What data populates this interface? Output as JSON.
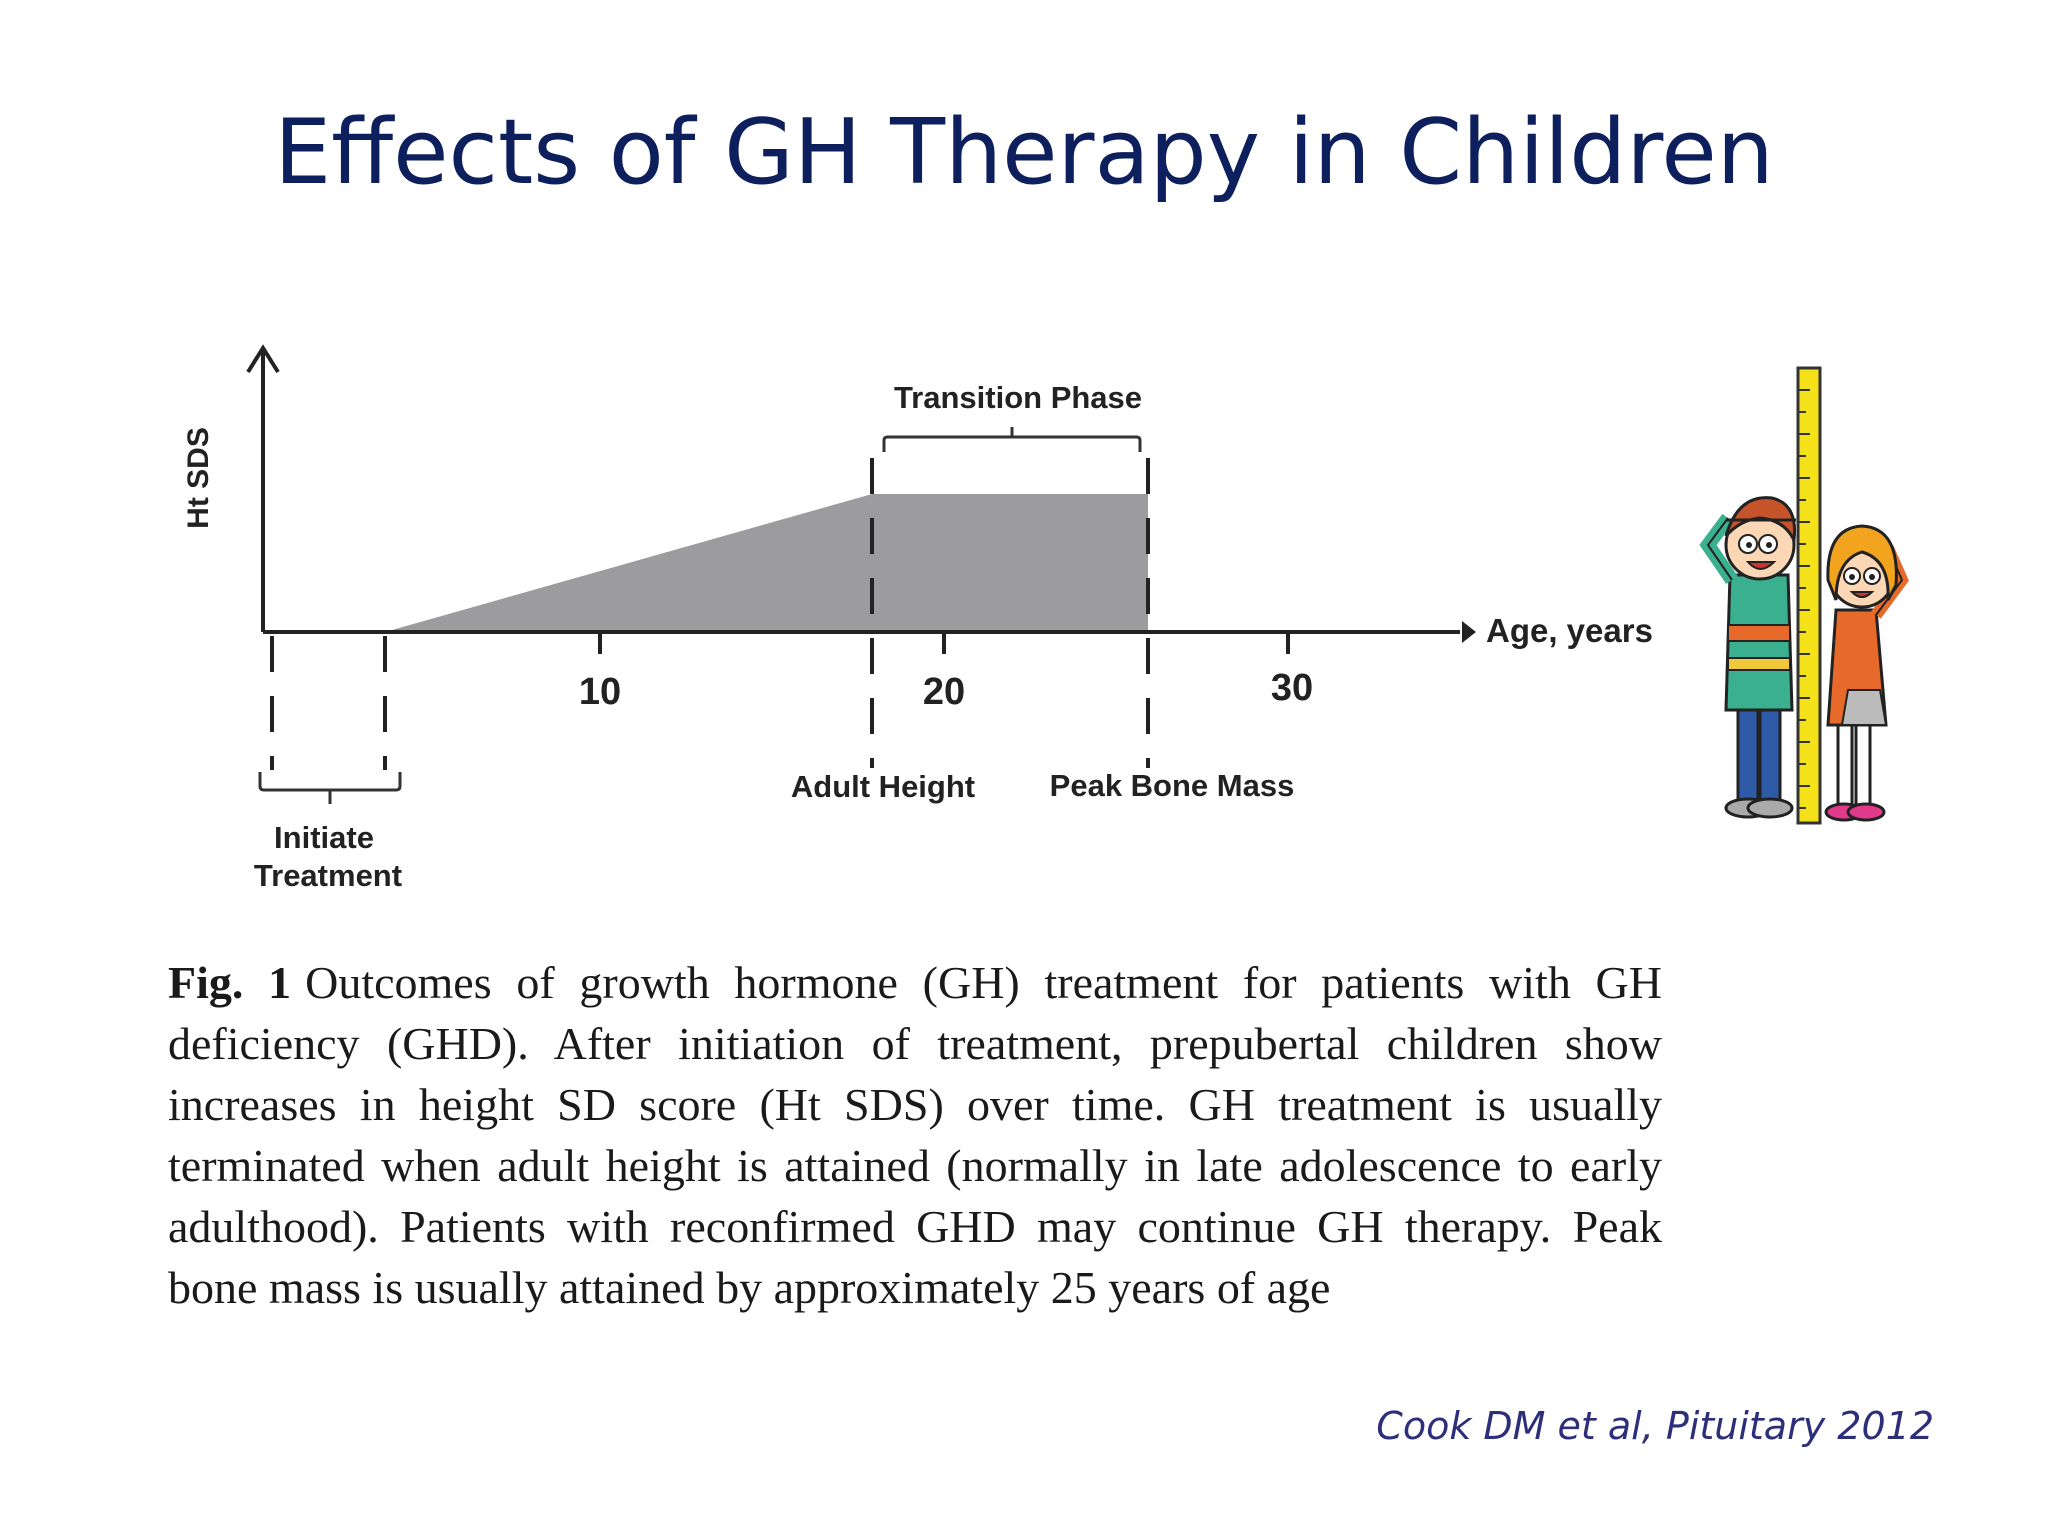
{
  "slide": {
    "title": "Effects of GH Therapy in Children",
    "citation": "Cook DM et al, Pituitary 2012"
  },
  "diagram": {
    "y_axis_label": "Ht SDS",
    "x_axis_label": "Age, years",
    "ticks": [
      "10",
      "20",
      "30"
    ],
    "bracket_top_label": "Transition Phase",
    "markers": [
      {
        "label": "Adult Height"
      },
      {
        "label": "Peak Bone Mass"
      }
    ],
    "initiate_line1": "Initiate",
    "initiate_line2": "Treatment"
  },
  "caption": {
    "fig_label": "Fig. 1",
    "text": "Outcomes of growth hormone (GH) treatment for patients with GH deficiency (GHD). After initiation of treatment, prepubertal children show increases in height SD score (Ht SDS) over time. GH treatment is usually terminated when adult height is attained (normally in late adolescence to early adulthood). Patients with reconfirmed GHD may continue GH therapy. Peak bone mass is usually attained by approximately 25 years of age"
  },
  "colors": {
    "title": "#0d1f5c",
    "shaded_area": "#9c9c9f",
    "axis": "#222222",
    "citation": "#2e2f7a"
  },
  "illustration": {
    "icon": "children-measuring-height-icon"
  }
}
